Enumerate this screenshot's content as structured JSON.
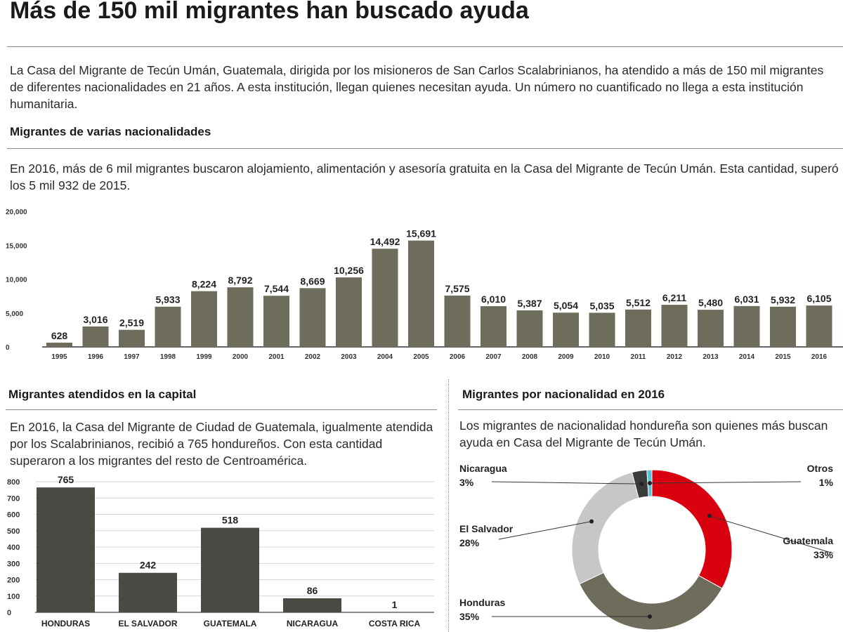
{
  "header": {
    "title": "Más de 150 mil migrantes han buscado ayuda",
    "intro": "La Casa del Migrante de Tecún Umán, Guatemala, dirigida por los misioneros de San Carlos Scalabrinianos, ha atendido a más de 150 mil migrantes de diferentes nacionalidades en 21 años. A esta institución, llegan quienes necesitan ayuda. Un número no cuantificado no llega a esta institución humanitaria."
  },
  "section1": {
    "title": "Migrantes de varias nacionalidades",
    "text": "En 2016, más de 6 mil migrantes buscaron alojamiento, alimentación y asesoría gratuita en la  Casa del Migrante de Tecún Umán. Esta cantidad, superó los 5 mil 932 de 2015."
  },
  "section2": {
    "title": "Migrantes atendidos en la capital",
    "text": "En 2016, la Casa del Migrante de Ciudad de Guatemala, igualmente atendida por los Scalabrinianos, recibió a 765 hondureños. Con esta cantidad superaron a los migrantes del resto de Centroamérica."
  },
  "section3": {
    "title": "Migrantes por nacionalidad en 2016",
    "text": "Los migrantes de nacionalidad hondureña son quienes más buscan ayuda en  Casa del Migrante de Tecún Umán."
  },
  "colors": {
    "bar": "#6e6c5b",
    "bar2": "#4b4a45",
    "guatemala": "#d9000f",
    "honduras": "#6e6c5b",
    "el_salvador": "#c7c7c7",
    "nicaragua": "#3b3b3b",
    "otros": "#58c4d3"
  },
  "chart_data": [
    {
      "type": "bar",
      "title": "Migrantes de varias nacionalidades",
      "categories": [
        "1995",
        "1996",
        "1997",
        "1998",
        "1999",
        "2000",
        "2001",
        "2002",
        "2003",
        "2004",
        "2005",
        "2006",
        "2007",
        "2008",
        "2009",
        "2010",
        "2011",
        "2012",
        "2013",
        "2014",
        "2015",
        "2016"
      ],
      "values": [
        628,
        3016,
        2519,
        5933,
        8224,
        8792,
        7544,
        8669,
        10256,
        14492,
        15691,
        7575,
        6010,
        5387,
        5054,
        5035,
        5512,
        6211,
        5480,
        6031,
        5932,
        6105
      ],
      "value_labels": [
        "628",
        "3,016",
        "2,519",
        "5,933",
        "8,224",
        "8,792",
        "7,544",
        "8,669",
        "10,256",
        "14,492",
        "15,691",
        "7,575",
        "6,010",
        "5,387",
        "5,054",
        "5,035",
        "5,512",
        "6,211",
        "5,480",
        "6,031",
        "5,932",
        "6,105"
      ],
      "yticks": [
        0,
        5000,
        10000,
        15000,
        20000
      ],
      "ytick_labels": [
        "0",
        "5,000",
        "10,000",
        "15,000",
        "20,000"
      ],
      "ylim": [
        0,
        20000
      ],
      "xlabel": "",
      "ylabel": "",
      "grid": false
    },
    {
      "type": "bar",
      "title": "Migrantes atendidos en la capital",
      "categories": [
        "HONDURAS",
        "EL SALVADOR",
        "GUATEMALA",
        "NICARAGUA",
        "COSTA RICA"
      ],
      "values": [
        765,
        242,
        518,
        86,
        1
      ],
      "value_labels": [
        "765",
        "242",
        "518",
        "86",
        "1"
      ],
      "yticks": [
        0,
        100,
        200,
        300,
        400,
        500,
        600,
        700,
        800
      ],
      "ytick_labels": [
        "0",
        "100",
        "200",
        "300",
        "400",
        "500",
        "600",
        "700",
        "800"
      ],
      "ylim": [
        0,
        800
      ],
      "xlabel": "",
      "ylabel": "",
      "grid": true
    },
    {
      "type": "pie",
      "title": "Migrantes por nacionalidad en 2016",
      "donut": true,
      "slices": [
        {
          "name": "Guatemala",
          "pct_label": "33%",
          "value": 33
        },
        {
          "name": "Honduras",
          "pct_label": "35%",
          "value": 35
        },
        {
          "name": "El Salvador",
          "pct_label": "28%",
          "value": 28
        },
        {
          "name": "Nicaragua",
          "pct_label": "3%",
          "value": 3
        },
        {
          "name": "Otros",
          "pct_label": "1%",
          "value": 1
        }
      ]
    }
  ]
}
